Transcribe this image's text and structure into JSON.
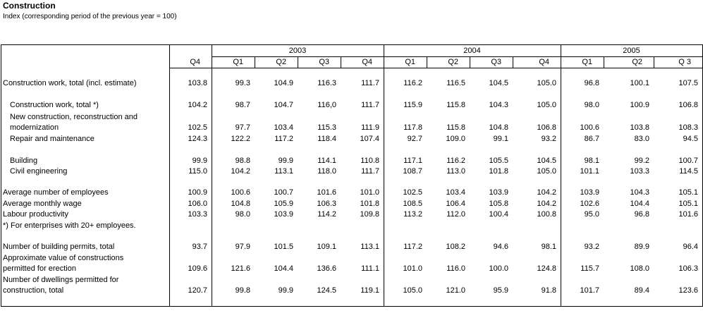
{
  "title": "Construction",
  "subtitle": "Index (corresponding period of the previous year = 100)",
  "table": {
    "columns": [
      {
        "year": null,
        "quarters": [
          "Q4"
        ]
      },
      {
        "year": "2003",
        "quarters": [
          "Q1",
          "Q2",
          "Q3",
          "Q4"
        ]
      },
      {
        "year": "2004",
        "quarters": [
          "Q1",
          "Q2",
          "Q3",
          "Q4"
        ]
      },
      {
        "year": "2005",
        "quarters": [
          "Q1",
          "Q2",
          "Q 3"
        ]
      }
    ],
    "rows": [
      {
        "label": [
          "Construction work, total (incl. estimate)"
        ],
        "indented": false,
        "values": [
          "103.8",
          "99.3",
          "104.9",
          "116.3",
          "111.7",
          "116.2",
          "116.5",
          "104.5",
          "105.0",
          "96.8",
          "100.1",
          "107.5"
        ]
      },
      {
        "label": [
          "Construction work, total *)"
        ],
        "indented": true,
        "values": [
          "104.2",
          "98.7",
          "104.7",
          "116,0",
          "111.7",
          "115.9",
          "115.8",
          "104.3",
          "105.0",
          "98.0",
          "100.9",
          "106.8"
        ]
      },
      {
        "label": [
          "New construction, reconstruction and",
          "modernization"
        ],
        "indented": true,
        "values": [
          "102.5",
          "97.7",
          "103.4",
          "115.3",
          "111.9",
          "117.8",
          "115.8",
          "104.8",
          "106.8",
          "100.6",
          "103.8",
          "108.3"
        ]
      },
      {
        "label": [
          "Repair and maintenance"
        ],
        "indented": true,
        "values": [
          "124.3",
          "122.2",
          "117.2",
          "118.4",
          "107.4",
          "92.7",
          "109.0",
          "99.1",
          "93.2",
          "86.7",
          "83.0",
          "94.5"
        ]
      },
      {
        "label": [
          "Building"
        ],
        "indented": true,
        "values": [
          "99.9",
          "98.8",
          "99.9",
          "114.1",
          "110.8",
          "117.1",
          "116.2",
          "105.5",
          "104.5",
          "98.1",
          "99.2",
          "100.7"
        ]
      },
      {
        "label": [
          "Civil engineering"
        ],
        "indented": true,
        "values": [
          "115.0",
          "104.2",
          "113.1",
          "118.0",
          "111.7",
          "108.7",
          "113.0",
          "101.8",
          "105.0",
          "101.1",
          "103.3",
          "114.5"
        ]
      },
      {
        "label": [
          "Average number of employees"
        ],
        "indented": false,
        "values": [
          "100.9",
          "100.6",
          "100.7",
          "101.6",
          "101.0",
          "102.5",
          "103.4",
          "103.9",
          "104.2",
          "103.9",
          "104.3",
          "105.1"
        ]
      },
      {
        "label": [
          "Average monthly wage"
        ],
        "indented": false,
        "values": [
          "106.0",
          "104.8",
          "105.9",
          "106.3",
          "101.8",
          "108.5",
          "106.4",
          "105.8",
          "104.2",
          "102.6",
          "104.4",
          "105.1"
        ]
      },
      {
        "label": [
          "Labour productivity"
        ],
        "indented": false,
        "values": [
          "103.3",
          "98.0",
          "103.9",
          "114.2",
          "109.8",
          "113.2",
          "112.0",
          "100.4",
          "100.8",
          "95.0",
          "96.8",
          "101.6"
        ]
      },
      {
        "label": [
          "Number of building permits, total"
        ],
        "indented": false,
        "values": [
          "93.7",
          "97.9",
          "101.5",
          "109.1",
          "113.1",
          "117.2",
          "108.2",
          "94.6",
          "98.1",
          "93.2",
          "89.9",
          "96.4"
        ]
      },
      {
        "label": [
          "Approximate value of constructions",
          "permitted for erection"
        ],
        "indented": false,
        "values": [
          "109.6",
          "121.6",
          "104.4",
          "136.6",
          "111.1",
          "101.0",
          "116.0",
          "100.0",
          "124.8",
          "115.7",
          "108.0",
          "106.3"
        ]
      },
      {
        "label": [
          "Number of dwellings permitted for",
          "construction, total"
        ],
        "indented": false,
        "values": [
          "120.7",
          "99.8",
          "99.9",
          "124.5",
          "119.1",
          "105.0",
          "121.0",
          "95.9",
          "91.8",
          "101.7",
          "89.4",
          "123.6"
        ]
      }
    ],
    "note": "*) For enterprises with 20+ employees."
  }
}
